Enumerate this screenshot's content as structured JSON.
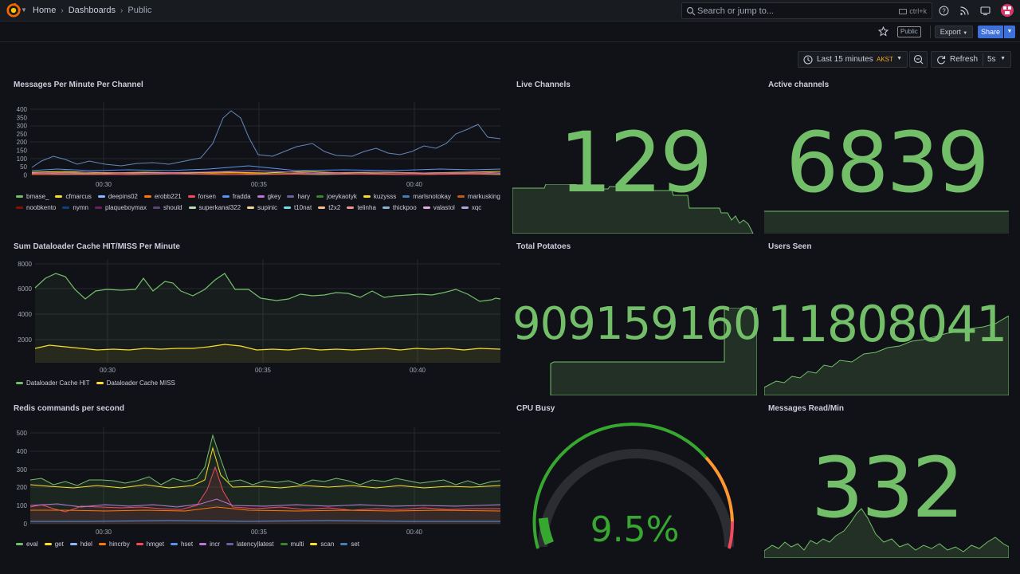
{
  "topbar": {
    "breadcrumb": [
      "Home",
      "Dashboards",
      "Public"
    ],
    "search_placeholder": "Search or jump to...",
    "search_shortcut": "ctrl+k"
  },
  "toolbar": {
    "public_tag": "Public",
    "export_label": "Export",
    "share_label": "Share"
  },
  "timepicker": {
    "range_label": "Last 15 minutes",
    "timezone": "AKST",
    "refresh_label": "Refresh",
    "refresh_interval": "5s"
  },
  "colors": {
    "green": "#73bf69",
    "yellow": "#fade2a",
    "background": "#111217",
    "accent_blue": "#3d71d9"
  },
  "panels": {
    "messages": {
      "title": "Messages Per Minute Per Channel",
      "y_ticks": [
        "400",
        "350",
        "300",
        "250",
        "200",
        "150",
        "100",
        "50",
        "0"
      ],
      "x_ticks": [
        "00:30",
        "00:35",
        "00:40"
      ],
      "legend": [
        {
          "name": "bmase_",
          "color": "#73bf69"
        },
        {
          "name": "cfmarcus",
          "color": "#fade2a"
        },
        {
          "name": "deepins02",
          "color": "#8ab8ff"
        },
        {
          "name": "erobb221",
          "color": "#ff780a"
        },
        {
          "name": "forsen",
          "color": "#f2495c"
        },
        {
          "name": "fradda",
          "color": "#5794f2"
        },
        {
          "name": "gkey",
          "color": "#b877d9"
        },
        {
          "name": "hary",
          "color": "#705da0"
        },
        {
          "name": "joeykaotyk",
          "color": "#37872d"
        },
        {
          "name": "kuzysss",
          "color": "#fade2a"
        },
        {
          "name": "marlsnotokay",
          "color": "#447ebc"
        },
        {
          "name": "markusking",
          "color": "#c15c17"
        },
        {
          "name": "noobkento",
          "color": "#890f02"
        },
        {
          "name": "nymn",
          "color": "#0a437c"
        },
        {
          "name": "plaqueboymax",
          "color": "#6d1f62"
        },
        {
          "name": "should",
          "color": "#584477"
        },
        {
          "name": "superkanal322",
          "color": "#b7dbab"
        },
        {
          "name": "supinic",
          "color": "#f4d598"
        },
        {
          "name": "t10nat",
          "color": "#70dbed"
        },
        {
          "name": "t2x2",
          "color": "#f9ba8f"
        },
        {
          "name": "telinha",
          "color": "#f29191"
        },
        {
          "name": "thickpoo",
          "color": "#82b5d8"
        },
        {
          "name": "valastol",
          "color": "#e5a8e2"
        },
        {
          "name": "xqc",
          "color": "#aea2e0"
        }
      ]
    },
    "dataloader": {
      "title": "Sum Dataloader Cache HIT/MISS Per Minute",
      "y_ticks": [
        "8000",
        "6000",
        "4000",
        "2000"
      ],
      "x_ticks": [
        "00:30",
        "00:35",
        "00:40"
      ],
      "legend": [
        {
          "name": "Dataloader Cache HIT",
          "color": "#73bf69"
        },
        {
          "name": "Dataloader Cache MISS",
          "color": "#fade2a"
        }
      ]
    },
    "redis": {
      "title": "Redis commands per second",
      "y_ticks": [
        "500",
        "400",
        "300",
        "200",
        "100",
        "0"
      ],
      "x_ticks": [
        "00:30",
        "00:35",
        "00:40"
      ],
      "legend": [
        {
          "name": "eval",
          "color": "#73bf69"
        },
        {
          "name": "get",
          "color": "#fade2a"
        },
        {
          "name": "hdel",
          "color": "#8ab8ff"
        },
        {
          "name": "hincrby",
          "color": "#ff780a"
        },
        {
          "name": "hmget",
          "color": "#f2495c"
        },
        {
          "name": "hset",
          "color": "#5794f2"
        },
        {
          "name": "incr",
          "color": "#b877d9"
        },
        {
          "name": "latency|latest",
          "color": "#705da0"
        },
        {
          "name": "multi",
          "color": "#37872d"
        },
        {
          "name": "scan",
          "color": "#fade2a"
        },
        {
          "name": "set",
          "color": "#447ebc"
        }
      ]
    },
    "live_channels": {
      "title": "Live Channels",
      "value": "129"
    },
    "active_channels": {
      "title": "Active channels",
      "value": "6839"
    },
    "total_potatoes": {
      "title": "Total Potatoes",
      "value": "909159160"
    },
    "users_seen": {
      "title": "Users Seen",
      "value": "11808041"
    },
    "cpu_busy": {
      "title": "CPU Busy",
      "value": "9.5%",
      "percent": 9.5
    },
    "messages_read": {
      "title": "Messages Read/Min",
      "value": "332"
    }
  }
}
